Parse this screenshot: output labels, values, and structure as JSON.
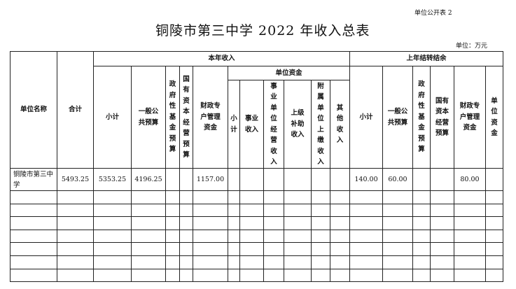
{
  "form_no": "单位公开表 2",
  "title": "铜陵市第三中学 2022 年收入总表",
  "unit": "单位：万元",
  "headers": {
    "unit_name": "单位名称",
    "total": "合计",
    "current_year": "本年收入",
    "prior_year": "上年结转结余",
    "unit_funds_group": "单位资金",
    "cy": {
      "subtotal": "小计",
      "general": "一般公共预算",
      "gov_fund": "政府性基金预算",
      "state_capital": "国有资本经营预算",
      "fiscal_account": "财政专户管理资金"
    },
    "uf": {
      "subtotal": "小计",
      "business": "事业收入",
      "operating": "事业单位经营收入",
      "superior": "上级补助收入",
      "affiliated": "附属单位上缴收入",
      "other": "其他收入"
    },
    "py": {
      "subtotal": "小计",
      "general": "一般公共预算",
      "gov_fund": "政府性基金预算",
      "state_capital": "国有资本经营预算",
      "fiscal_account": "财政专户管理资金",
      "unit_funds": "单位资金"
    }
  },
  "rows": [
    [
      "铜陵市第三中学",
      "5493.25",
      "5353.25",
      "4196.25",
      "",
      "",
      "1157.00",
      "",
      "",
      "",
      "",
      "",
      "",
      "140.00",
      "60.00",
      "",
      "",
      "80.00",
      ""
    ],
    [
      "",
      "",
      "",
      "",
      "",
      "",
      "",
      "",
      "",
      "",
      "",
      "",
      "",
      "",
      "",
      "",
      "",
      "",
      ""
    ],
    [
      "",
      "",
      "",
      "",
      "",
      "",
      "",
      "",
      "",
      "",
      "",
      "",
      "",
      "",
      "",
      "",
      "",
      "",
      ""
    ],
    [
      "",
      "",
      "",
      "",
      "",
      "",
      "",
      "",
      "",
      "",
      "",
      "",
      "",
      "",
      "",
      "",
      "",
      "",
      ""
    ],
    [
      "",
      "",
      "",
      "",
      "",
      "",
      "",
      "",
      "",
      "",
      "",
      "",
      "",
      "",
      "",
      "",
      "",
      "",
      ""
    ],
    [
      "",
      "",
      "",
      "",
      "",
      "",
      "",
      "",
      "",
      "",
      "",
      "",
      "",
      "",
      "",
      "",
      "",
      "",
      ""
    ],
    [
      "",
      "",
      "",
      "",
      "",
      "",
      "",
      "",
      "",
      "",
      "",
      "",
      "",
      "",
      "",
      "",
      "",
      "",
      ""
    ],
    [
      "",
      "",
      "",
      "",
      "",
      "",
      "",
      "",
      "",
      "",
      "",
      "",
      "",
      "",
      "",
      "",
      "",
      "",
      ""
    ]
  ]
}
